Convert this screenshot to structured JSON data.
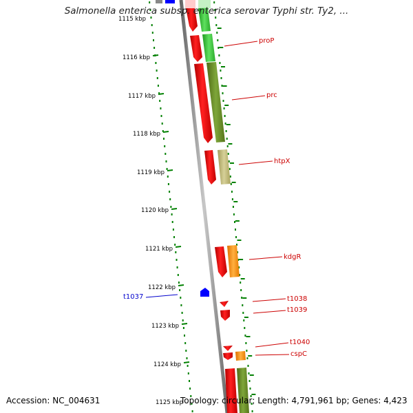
{
  "title": "Salmonella enterica subsp. enterica serovar Typhi str. Ty2, ...",
  "footer": {
    "accession": "Accession: NC_004631",
    "summary": "Topology: circular; Length: 4,791,961 bp; Genes: 4,423"
  },
  "scale_labels": [
    "1115 kbp",
    "1116 kbp",
    "1117 kbp",
    "1118 kbp",
    "1119 kbp",
    "1120 kbp",
    "1121 kbp",
    "1122 kbp",
    "1123 kbp",
    "1124 kbp",
    "1125 kbp"
  ],
  "gene_labels": [
    "proP",
    "prc",
    "htpX",
    "kdgR",
    "t1038",
    "t1039",
    "t1040",
    "cspC"
  ],
  "trna_labels": [
    "t1037"
  ],
  "colors": {
    "cds": "#ff0000",
    "cog_green": "#33cc33",
    "cog_olive": "#6b8e23",
    "cog_khaki": "#bdb76b",
    "cog_orange": "#ff8c00",
    "trna": "#0000ff",
    "backbone": "#808080",
    "tick": "#008000",
    "label_red": "#cc0000",
    "label_blue": "#0000cc"
  }
}
